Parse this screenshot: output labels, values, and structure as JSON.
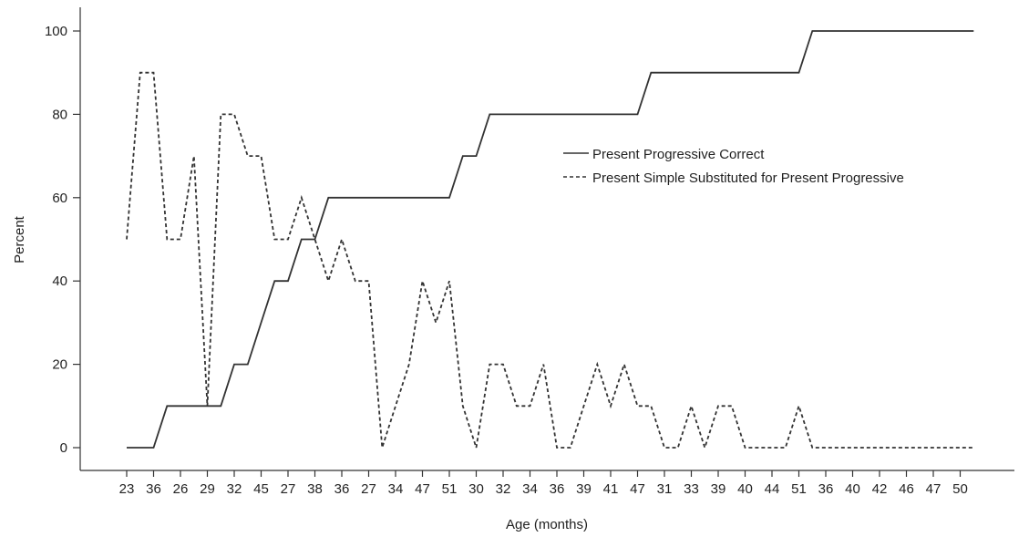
{
  "chart_data": {
    "type": "line",
    "title": "",
    "xlabel": "Age (months)",
    "ylabel": "Percent",
    "ylim": [
      0,
      100
    ],
    "yticks": [
      0,
      20,
      40,
      60,
      80,
      100
    ],
    "categories": [
      "23",
      "36",
      "26",
      "29",
      "32",
      "45",
      "27",
      "38",
      "36",
      "27",
      "34",
      "47",
      "51",
      "30",
      "32",
      "34",
      "36",
      "39",
      "41",
      "47",
      "31",
      "33",
      "39",
      "40",
      "44",
      "51",
      "36",
      "40",
      "42",
      "46",
      "47",
      "50"
    ],
    "grid": false,
    "legend_position": "top-right",
    "series": [
      {
        "name": "Present Progressive Correct",
        "style": "solid",
        "color": "#333333",
        "x": [
          0,
          1,
          1.5,
          3,
          3.5,
          4,
          4.5,
          5,
          5.5,
          6,
          6.5,
          7,
          7.5,
          8,
          8.5,
          9,
          9.5,
          12,
          12.5,
          13,
          13.5,
          14,
          14.5,
          19,
          19.5,
          25,
          25.5,
          31.5
        ],
        "y": [
          0,
          0,
          10,
          10,
          10,
          20,
          20,
          30,
          40,
          40,
          50,
          50,
          60,
          60,
          60,
          60,
          60,
          60,
          70,
          70,
          80,
          80,
          80,
          80,
          90,
          90,
          100,
          100
        ]
      },
      {
        "name": "Present Simple Substituted for Present Progressive",
        "style": "dashed",
        "color": "#333333",
        "x": [
          0,
          0.5,
          1,
          1.5,
          2,
          2.5,
          3,
          3.5,
          4,
          4.5,
          5,
          5.5,
          6,
          6.5,
          7,
          7.5,
          8,
          8.5,
          9,
          9.5,
          10,
          10.5,
          11,
          11.5,
          12,
          12.5,
          13,
          13.5,
          14,
          14.5,
          15,
          15.5,
          16,
          16.5,
          17,
          17.5,
          18,
          18.5,
          19,
          19.5,
          20,
          20.5,
          21,
          21.5,
          22,
          22.5,
          23,
          23.5,
          24,
          24.5,
          25,
          25.5,
          26,
          26.5,
          27,
          27.5,
          28,
          28.5,
          29,
          29.5,
          30,
          30.5,
          31,
          31.5
        ],
        "y": [
          50,
          90,
          90,
          50,
          50,
          70,
          10,
          80,
          80,
          70,
          70,
          50,
          50,
          60,
          50,
          40,
          50,
          40,
          40,
          0,
          10,
          20,
          40,
          30,
          40,
          10,
          0,
          20,
          20,
          10,
          10,
          20,
          0,
          0,
          10,
          20,
          10,
          20,
          10,
          10,
          0,
          0,
          10,
          0,
          10,
          10,
          0,
          0,
          0,
          0,
          10,
          0,
          0,
          0,
          0,
          0,
          0,
          0,
          0,
          0,
          0,
          0,
          0,
          0
        ]
      }
    ]
  }
}
